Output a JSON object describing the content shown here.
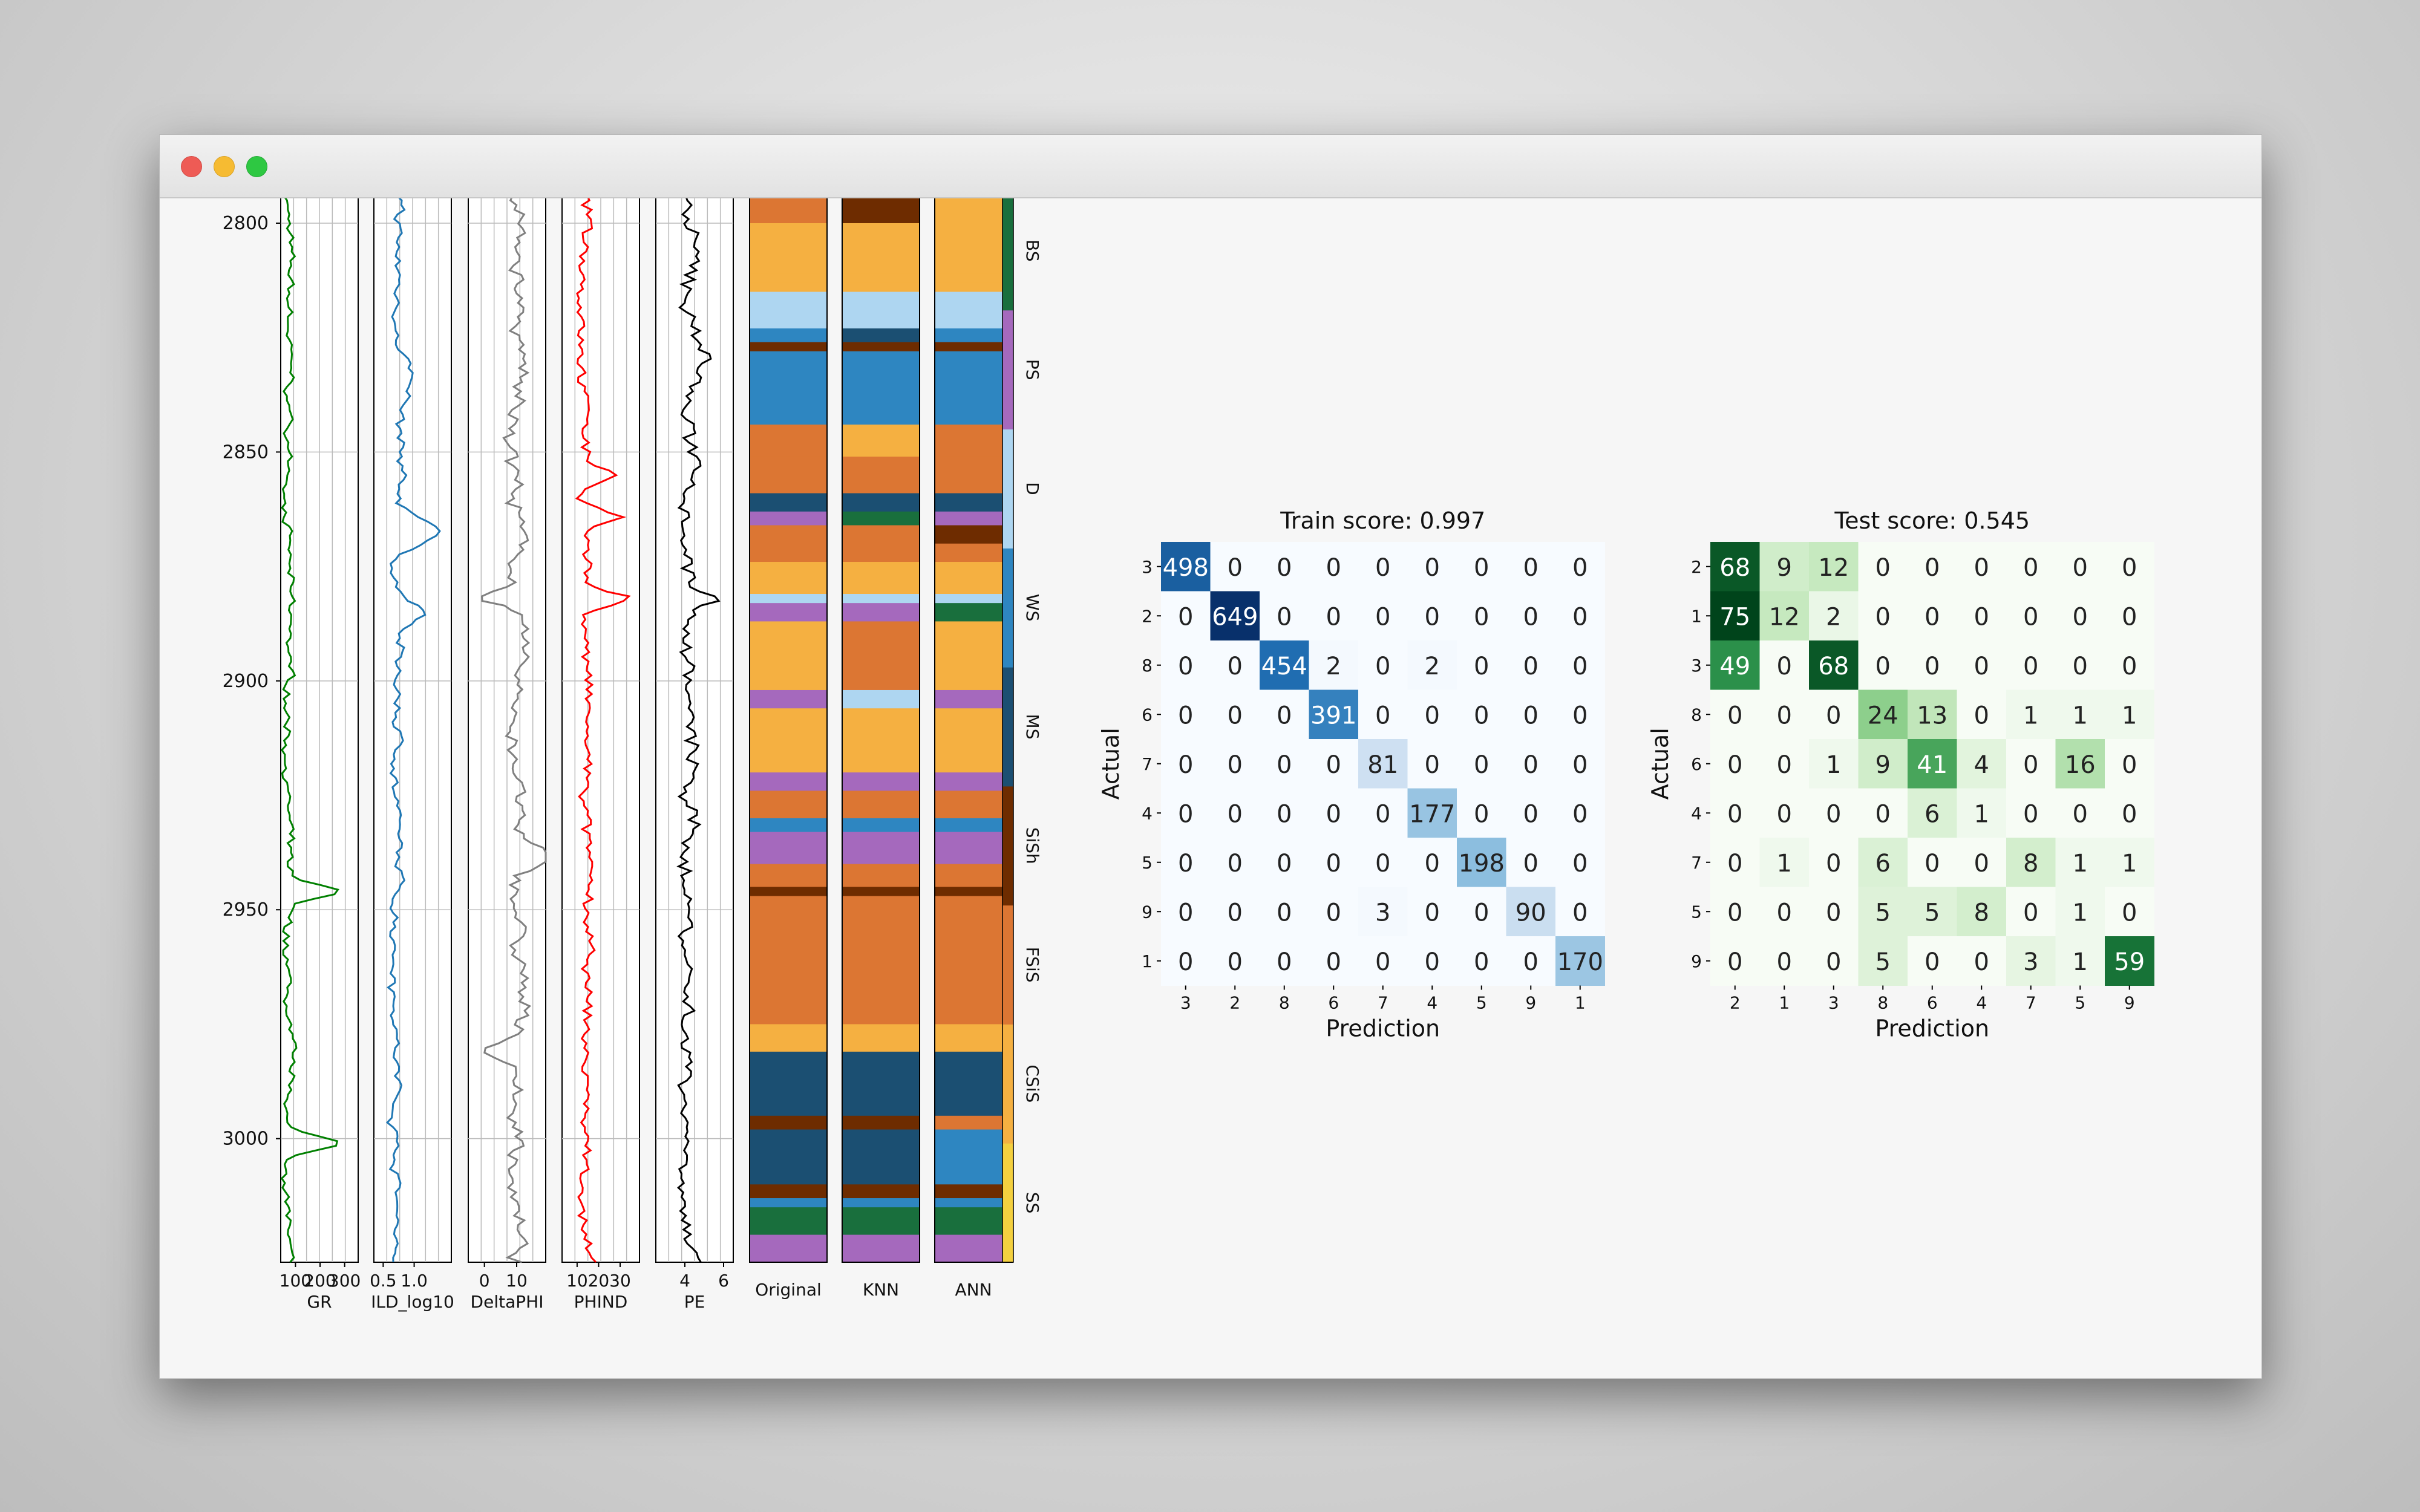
{
  "window": {
    "controls": [
      "close",
      "minimize",
      "maximize"
    ]
  },
  "well_logs": {
    "depth_ticks": [
      2800,
      2850,
      2900,
      2950,
      3000
    ],
    "depth_range": [
      2793,
      3027
    ],
    "tracks": [
      {
        "name": "GR",
        "color": "#008000",
        "ticks": [
          {
            "v": 100,
            "label": "100"
          },
          {
            "v": 200,
            "label": "200"
          },
          {
            "v": 300,
            "label": "300"
          }
        ],
        "xlim": [
          40,
          355
        ]
      },
      {
        "name": "ILD_log10",
        "color": "#1f77b4",
        "ticks": [
          {
            "v": 0.5,
            "label": "0.5"
          },
          {
            "v": 1.0,
            "label": "1.0"
          }
        ],
        "xlim": [
          0.35,
          1.6
        ]
      },
      {
        "name": "DeltaPHI",
        "color": "#808080",
        "ticks": [
          {
            "v": 0,
            "label": "0"
          },
          {
            "v": 10,
            "label": "10"
          }
        ],
        "xlim": [
          -5,
          19
        ]
      },
      {
        "name": "PHIND",
        "color": "#ff0000",
        "ticks": [
          {
            "v": 10,
            "label": "10"
          },
          {
            "v": 20,
            "label": "20"
          },
          {
            "v": 30,
            "label": "30"
          }
        ],
        "xlim": [
          3,
          39
        ]
      },
      {
        "name": "PE",
        "color": "#000000",
        "ticks": [
          {
            "v": 4,
            "label": "4"
          },
          {
            "v": 6,
            "label": "6"
          }
        ],
        "xlim": [
          2.5,
          6.5
        ]
      }
    ],
    "facies_columns": [
      "Original",
      "KNN",
      "ANN"
    ],
    "facies_legend": [
      "SS",
      "CSiS",
      "FSiS",
      "SiSh",
      "MS",
      "WS",
      "D",
      "PS",
      "BS"
    ],
    "facies_colors": [
      "#F4D03F",
      "#F5B041",
      "#DC7633",
      "#6E2C00",
      "#1B4F72",
      "#2E86C1",
      "#AED6F1",
      "#A569BD",
      "#196F3D"
    ]
  },
  "chart_data": [
    {
      "type": "heatmap",
      "title": "Train score: 0.997",
      "xlabel": "Prediction",
      "ylabel": "Actual",
      "x_categories": [
        "3",
        "2",
        "8",
        "6",
        "7",
        "4",
        "5",
        "9",
        "1"
      ],
      "y_categories": [
        "3",
        "2",
        "8",
        "6",
        "7",
        "4",
        "5",
        "9",
        "1"
      ],
      "colormap": "blues",
      "values": [
        [
          498,
          0,
          0,
          0,
          0,
          0,
          0,
          0,
          0
        ],
        [
          0,
          649,
          0,
          0,
          0,
          0,
          0,
          0,
          0
        ],
        [
          0,
          0,
          454,
          2,
          0,
          2,
          0,
          0,
          0
        ],
        [
          0,
          0,
          0,
          391,
          0,
          0,
          0,
          0,
          0
        ],
        [
          0,
          0,
          0,
          0,
          81,
          0,
          0,
          0,
          0
        ],
        [
          0,
          0,
          0,
          0,
          0,
          177,
          0,
          0,
          0
        ],
        [
          0,
          0,
          0,
          0,
          0,
          0,
          198,
          0,
          0
        ],
        [
          0,
          0,
          0,
          0,
          3,
          0,
          0,
          90,
          0
        ],
        [
          0,
          0,
          0,
          0,
          0,
          0,
          0,
          0,
          170
        ]
      ]
    },
    {
      "type": "heatmap",
      "title": "Test score: 0.545",
      "xlabel": "Prediction",
      "ylabel": "Actual",
      "x_categories": [
        "2",
        "1",
        "3",
        "8",
        "6",
        "4",
        "7",
        "5",
        "9"
      ],
      "y_categories": [
        "2",
        "1",
        "3",
        "8",
        "6",
        "4",
        "7",
        "5",
        "9"
      ],
      "colormap": "greens",
      "values": [
        [
          68,
          9,
          12,
          0,
          0,
          0,
          0,
          0,
          0
        ],
        [
          75,
          12,
          2,
          0,
          0,
          0,
          0,
          0,
          0
        ],
        [
          49,
          0,
          68,
          0,
          0,
          0,
          0,
          0,
          0
        ],
        [
          0,
          0,
          0,
          24,
          13,
          0,
          1,
          1,
          1
        ],
        [
          0,
          0,
          1,
          9,
          41,
          4,
          0,
          16,
          0
        ],
        [
          0,
          0,
          0,
          0,
          6,
          1,
          0,
          0,
          0
        ],
        [
          0,
          1,
          0,
          6,
          0,
          0,
          8,
          1,
          1
        ],
        [
          0,
          0,
          0,
          5,
          5,
          8,
          0,
          1,
          0
        ],
        [
          0,
          0,
          0,
          5,
          0,
          0,
          3,
          1,
          59
        ]
      ]
    }
  ]
}
